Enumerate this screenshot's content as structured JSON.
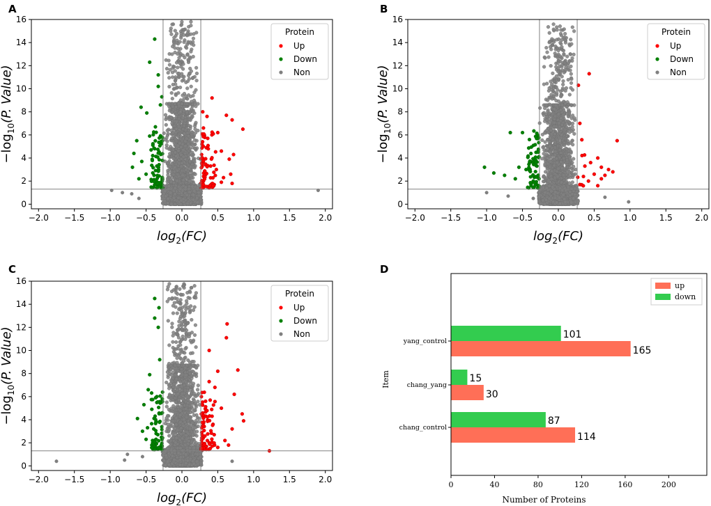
{
  "chart_data": [
    {
      "type": "scatter",
      "panel_label": "A",
      "xlabel": "log",
      "xlabel_sub": "2",
      "xlabel_tail": "(FC)",
      "ylabel_prefix": "−log",
      "ylabel_sub": "10",
      "ylabel_tail": "(P. Value)",
      "xlim": [
        -2.1,
        2.1
      ],
      "ylim": [
        -0.4,
        16
      ],
      "xticks": [
        -2.0,
        -1.5,
        -1.0,
        -0.5,
        0.0,
        0.5,
        1.0,
        1.5,
        2.0
      ],
      "xtick_labels": [
        "−2.0",
        "−1.5",
        "−1.0",
        "−0.5",
        "0.0",
        "0.5",
        "1.0",
        "1.5",
        "2.0"
      ],
      "yticks": [
        0,
        2,
        4,
        6,
        8,
        10,
        12,
        14,
        16
      ],
      "ytick_labels": [
        "0",
        "2",
        "4",
        "6",
        "8",
        "10",
        "12",
        "14",
        "16"
      ],
      "vlines": [
        -0.263,
        0.263
      ],
      "hline": 1.301,
      "legend_title": "Protein",
      "legend_labels": [
        "Up",
        "Down",
        "Non"
      ],
      "colors": {
        "up": "#ff0000",
        "down": "#008000",
        "non": "#808080"
      },
      "up_points": [
        [
          0.85,
          6.5
        ],
        [
          0.7,
          7.3
        ],
        [
          0.62,
          7.7
        ],
        [
          0.42,
          9.2
        ],
        [
          0.35,
          7.6
        ],
        [
          0.5,
          6.2
        ],
        [
          0.36,
          5.7
        ],
        [
          0.72,
          4.3
        ],
        [
          0.66,
          3.9
        ],
        [
          0.68,
          2.6
        ],
        [
          0.7,
          1.8
        ],
        [
          0.55,
          4.6
        ],
        [
          0.4,
          3.3
        ],
        [
          0.32,
          2.6
        ],
        [
          0.58,
          2.3
        ],
        [
          0.45,
          1.7
        ],
        [
          0.3,
          2.0
        ],
        [
          0.28,
          4.0
        ],
        [
          0.29,
          8.0
        ],
        [
          0.3,
          6.6
        ],
        [
          0.48,
          3.0
        ],
        [
          0.55,
          1.9
        ]
      ],
      "down_points": [
        [
          -0.45,
          12.3
        ],
        [
          -0.38,
          14.3
        ],
        [
          -0.33,
          11.2
        ],
        [
          -0.33,
          10.2
        ],
        [
          -0.57,
          8.4
        ],
        [
          -0.49,
          7.9
        ],
        [
          -0.63,
          5.5
        ],
        [
          -0.67,
          4.4
        ],
        [
          -0.56,
          3.7
        ],
        [
          -0.69,
          3.2
        ],
        [
          -0.6,
          2.2
        ],
        [
          -0.45,
          5.9
        ],
        [
          -0.37,
          6.7
        ],
        [
          -0.3,
          8.6
        ],
        [
          -0.43,
          4.7
        ],
        [
          -0.35,
          3.3
        ],
        [
          -0.5,
          2.6
        ],
        [
          -0.4,
          2.0
        ],
        [
          -0.32,
          1.7
        ],
        [
          -0.28,
          9.3
        ]
      ],
      "non_points": [
        [
          -0.98,
          1.2
        ],
        [
          -0.83,
          1.0
        ],
        [
          -0.7,
          0.9
        ],
        [
          -0.6,
          0.5
        ],
        [
          1.9,
          1.2
        ]
      ],
      "non_cloud_maxy": 15.8
    },
    {
      "type": "scatter",
      "panel_label": "B",
      "xlabel": "log",
      "xlabel_sub": "2",
      "xlabel_tail": "(FC)",
      "ylabel_prefix": "−log",
      "ylabel_sub": "10",
      "ylabel_tail": "(P. Value)",
      "xlim": [
        -2.1,
        2.1
      ],
      "ylim": [
        -0.4,
        16
      ],
      "xticks": [
        -2.0,
        -1.5,
        -1.0,
        -0.5,
        0.0,
        0.5,
        1.0,
        1.5,
        2.0
      ],
      "xtick_labels": [
        "−2.0",
        "−1.5",
        "−1.0",
        "−0.5",
        "0.0",
        "0.5",
        "1.0",
        "1.5",
        "2.0"
      ],
      "yticks": [
        0,
        2,
        4,
        6,
        8,
        10,
        12,
        14,
        16
      ],
      "ytick_labels": [
        "0",
        "2",
        "4",
        "6",
        "8",
        "10",
        "12",
        "14",
        "16"
      ],
      "vlines": [
        -0.263,
        0.263
      ],
      "hline": 1.301,
      "legend_title": "Protein",
      "legend_labels": [
        "Up",
        "Down",
        "Non"
      ],
      "colors": {
        "up": "#ff0000",
        "down": "#008000",
        "non": "#808080"
      },
      "up_points": [
        [
          0.43,
          11.3
        ],
        [
          0.28,
          10.3
        ],
        [
          0.3,
          7.0
        ],
        [
          0.82,
          5.5
        ],
        [
          0.55,
          4.0
        ],
        [
          0.45,
          3.6
        ],
        [
          0.37,
          3.3
        ],
        [
          0.6,
          3.2
        ],
        [
          0.7,
          3.0
        ],
        [
          0.76,
          2.8
        ],
        [
          0.5,
          2.6
        ],
        [
          0.35,
          2.4
        ],
        [
          0.6,
          2.2
        ],
        [
          0.42,
          2.0
        ],
        [
          0.3,
          1.7
        ],
        [
          0.55,
          1.6
        ],
        [
          0.65,
          2.5
        ]
      ],
      "down_points": [
        [
          -0.67,
          6.2
        ],
        [
          -0.5,
          6.2
        ],
        [
          -0.28,
          4.6
        ],
        [
          -1.03,
          3.2
        ],
        [
          -0.9,
          2.7
        ],
        [
          -0.55,
          3.2
        ],
        [
          -0.45,
          3.0
        ],
        [
          -0.75,
          2.5
        ],
        [
          -0.6,
          2.2
        ],
        [
          -0.35,
          2.0
        ],
        [
          -0.38,
          1.6
        ],
        [
          -0.32,
          1.8
        ]
      ],
      "non_points": [
        [
          -1.0,
          1.0
        ],
        [
          0.98,
          0.2
        ],
        [
          -0.7,
          0.7
        ],
        [
          0.65,
          0.6
        ],
        [
          -0.35,
          0.5
        ]
      ],
      "non_cloud_maxy": 15.6
    },
    {
      "type": "scatter",
      "panel_label": "C",
      "xlabel": "log",
      "xlabel_sub": "2",
      "xlabel_tail": "(FC)",
      "ylabel_prefix": "−log",
      "ylabel_sub": "10",
      "ylabel_tail": "(P. Value)",
      "xlim": [
        -2.1,
        2.1
      ],
      "ylim": [
        -0.4,
        16
      ],
      "xticks": [
        -2.0,
        -1.5,
        -1.0,
        -0.5,
        0.0,
        0.5,
        1.0,
        1.5,
        2.0
      ],
      "xtick_labels": [
        "−2.0",
        "−1.5",
        "−1.0",
        "−0.5",
        "0.0",
        "0.5",
        "1.0",
        "1.5",
        "2.0"
      ],
      "yticks": [
        0,
        2,
        4,
        6,
        8,
        10,
        12,
        14,
        16
      ],
      "ytick_labels": [
        "0",
        "2",
        "4",
        "6",
        "8",
        "10",
        "12",
        "14",
        "16"
      ],
      "vlines": [
        -0.263,
        0.263
      ],
      "hline": 1.301,
      "legend_title": "Protein",
      "legend_labels": [
        "Up",
        "Down",
        "Non"
      ],
      "colors": {
        "up": "#ff0000",
        "down": "#008000",
        "non": "#808080"
      },
      "up_points": [
        [
          0.63,
          12.3
        ],
        [
          0.62,
          11.1
        ],
        [
          0.38,
          10.0
        ],
        [
          0.78,
          8.3
        ],
        [
          0.5,
          8.2
        ],
        [
          0.38,
          7.3
        ],
        [
          0.46,
          6.8
        ],
        [
          0.73,
          6.2
        ],
        [
          0.84,
          4.5
        ],
        [
          0.86,
          3.9
        ],
        [
          0.7,
          3.2
        ],
        [
          0.55,
          5.0
        ],
        [
          0.33,
          5.6
        ],
        [
          0.45,
          2.7
        ],
        [
          0.6,
          2.2
        ],
        [
          0.38,
          2.0
        ],
        [
          0.3,
          3.7
        ],
        [
          0.5,
          1.6
        ],
        [
          1.22,
          1.3
        ],
        [
          0.65,
          1.8
        ],
        [
          0.42,
          4.3
        ]
      ],
      "down_points": [
        [
          -0.38,
          14.5
        ],
        [
          -0.32,
          13.7
        ],
        [
          -0.33,
          12.0
        ],
        [
          -0.31,
          9.2
        ],
        [
          -0.45,
          7.9
        ],
        [
          -0.47,
          6.6
        ],
        [
          -0.62,
          4.1
        ],
        [
          -0.53,
          5.3
        ],
        [
          -0.42,
          4.9
        ],
        [
          -0.48,
          3.3
        ],
        [
          -0.55,
          3.0
        ],
        [
          -0.5,
          2.3
        ],
        [
          -0.36,
          2.8
        ],
        [
          -0.42,
          1.8
        ],
        [
          -0.3,
          1.6
        ],
        [
          -0.38,
          12.8
        ],
        [
          -0.35,
          6.0
        ]
      ],
      "non_points": [
        [
          -1.75,
          0.4
        ],
        [
          -0.76,
          1.0
        ],
        [
          -0.8,
          0.5
        ],
        [
          -0.55,
          0.8
        ],
        [
          0.7,
          0.4
        ]
      ],
      "non_cloud_maxy": 15.8
    },
    {
      "type": "bar",
      "orientation": "horizontal",
      "panel_label": "D",
      "xlabel": "Number of Proteins",
      "ylabel": "Item",
      "categories": [
        "yang_control",
        "chang_yang",
        "chang_control"
      ],
      "series": [
        {
          "name": "up",
          "values": [
            165,
            30,
            114
          ],
          "color": "#ff6f57"
        },
        {
          "name": "down",
          "values": [
            101,
            15,
            87
          ],
          "color": "#33cc4f"
        }
      ],
      "xlim": [
        0,
        235
      ],
      "xticks": [
        0,
        40,
        80,
        120,
        160,
        200
      ],
      "xtick_labels": [
        "0",
        "40",
        "80",
        "120",
        "160",
        "200"
      ],
      "legend_labels": [
        "up",
        "down"
      ]
    }
  ]
}
